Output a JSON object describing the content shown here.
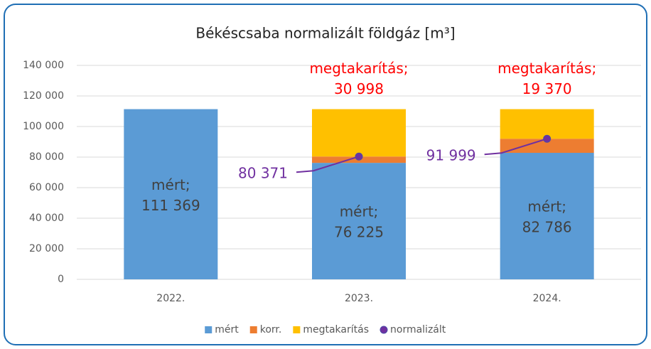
{
  "chart_data": {
    "type": "bar",
    "stacked": true,
    "title": "Békéscsaba normalizált földgáz [m³]",
    "categories": [
      "2022.",
      "2023.",
      "2024."
    ],
    "series": [
      {
        "name": "mért",
        "color": "#5b9bd5",
        "values": [
          111369,
          76225,
          82786
        ],
        "value_labels": [
          [
            "mért;",
            "111 369"
          ],
          [
            "mért;",
            "76 225"
          ],
          [
            "mért;",
            "82 786"
          ]
        ]
      },
      {
        "name": "korr.",
        "color": "#ed7d31",
        "values": [
          0,
          4146,
          9213
        ]
      },
      {
        "name": "megtakarítás",
        "color": "#ffc000",
        "values": [
          0,
          30998,
          19370
        ],
        "value_labels": [
          null,
          [
            "megtakarítás;",
            "30 998"
          ],
          [
            "megtakarítás;",
            "19 370"
          ]
        ],
        "label_color": "#ff0000"
      },
      {
        "name": "normalizált",
        "type": "marker",
        "color": "#7030a0",
        "values": [
          null,
          80371,
          91999
        ],
        "value_labels": [
          null,
          "80 371",
          "91 999"
        ]
      }
    ],
    "ylim": [
      0,
      140000
    ],
    "yticks": [
      0,
      {
        "value": 20000,
        "label": "20 000"
      },
      {
        "value": 40000,
        "label": "40 000"
      },
      {
        "value": 60000,
        "label": "60 000"
      },
      {
        "value": 80000,
        "label": "80 000"
      },
      {
        "value": 100000,
        "label": "100 000"
      },
      {
        "value": 120000,
        "label": "120 000"
      },
      {
        "value": 140000,
        "label": "140 000"
      }
    ],
    "grid": true,
    "legend": "bottom"
  }
}
